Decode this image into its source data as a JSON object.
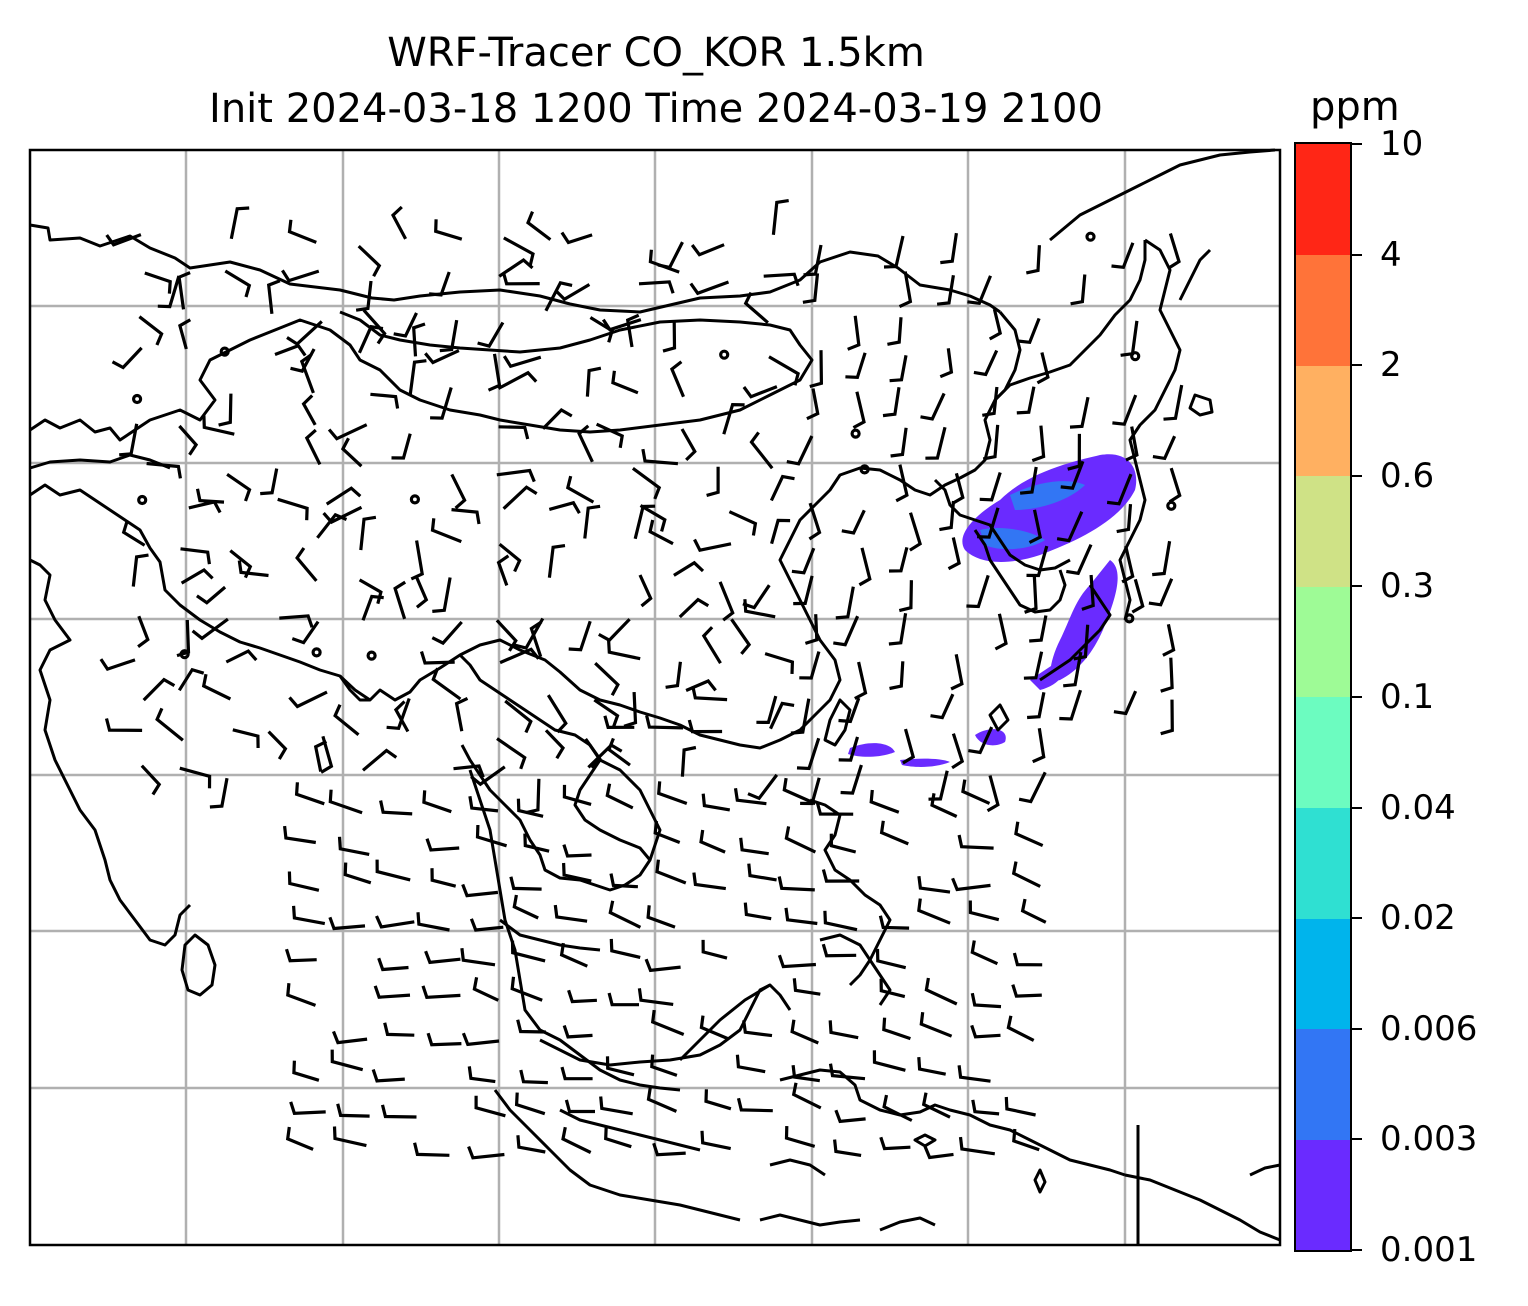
{
  "title": {
    "line1": "WRF-Tracer CO_KOR 1.5km",
    "line2": "Init 2024-03-18 1200 Time 2024-03-19 2100"
  },
  "colorbar": {
    "unit": "ppm",
    "levels": [
      "0.001",
      "0.003",
      "0.006",
      "0.02",
      "0.04",
      "0.1",
      "0.3",
      "0.6",
      "2",
      "4",
      "10"
    ],
    "colors": [
      "#6a2bff",
      "#3276f4",
      "#00b4ec",
      "#2fe0d2",
      "#6cfcc0",
      "#9efb96",
      "#cfe286",
      "#ffb061",
      "#ff7339",
      "#ff2616"
    ]
  },
  "map": {
    "region": "East & Southeast Asia",
    "field": "CO_KOR tracer",
    "wind_barbs": true,
    "gridlines": true,
    "plume_color": "#6a2bff"
  }
}
